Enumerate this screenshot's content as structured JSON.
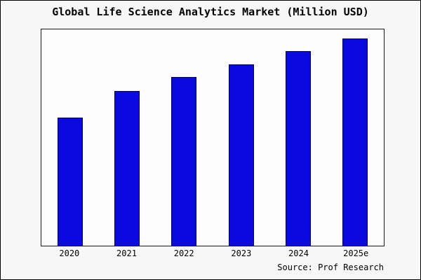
{
  "title": "Global Life Science Analytics Market (Million USD)",
  "source": "Source: Prof Research",
  "colors": {
    "bar_fill": "#0a0ae0",
    "bar_border": "#000060",
    "plot_bg": "#fdfdfd",
    "page_bg": "#f7f7f7",
    "frame_border": "#000000"
  },
  "chart_data": {
    "type": "bar",
    "categories": [
      "2020",
      "2021",
      "2022",
      "2023",
      "2024",
      "2025e"
    ],
    "values": [
      184,
      222,
      242,
      260,
      279,
      297
    ],
    "title": "Global Life Science Analytics Market (Million USD)",
    "xlabel": "",
    "ylabel": "",
    "ylim": [
      0,
      310
    ],
    "grid": false,
    "legend": false,
    "annotations": [
      "Source: Prof Research"
    ]
  }
}
